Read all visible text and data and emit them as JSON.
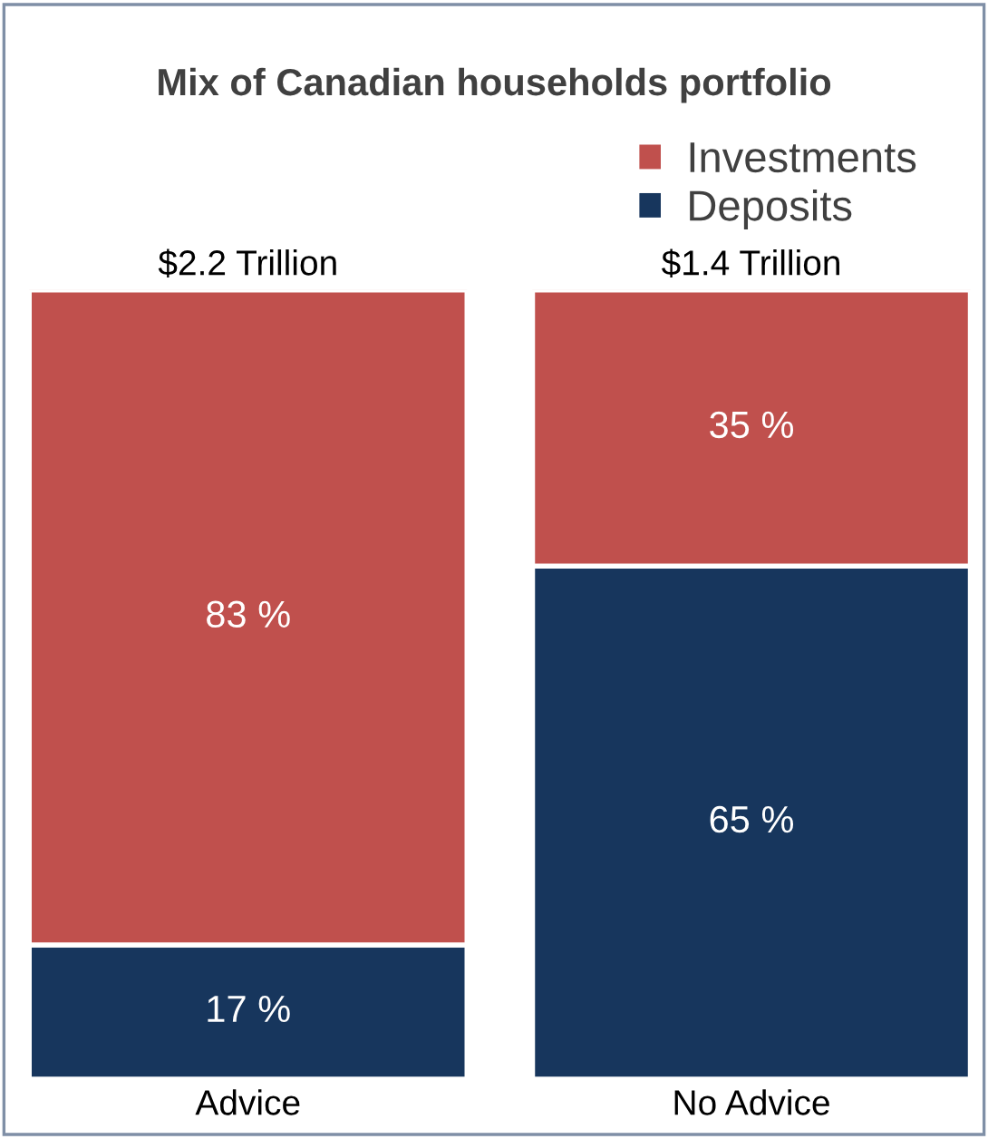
{
  "chart_data": {
    "type": "bar",
    "title": "Mix of Canadian households portfolio",
    "categories": [
      "Advice",
      "No Advice"
    ],
    "stacked": true,
    "legend": "top right",
    "tick_labels": "x",
    "series": [
      {
        "name": "Deposits",
        "color": "#17365d",
        "values": [
          17,
          65
        ],
        "value_labels": [
          "17 %",
          "65 %"
        ]
      },
      {
        "name": "Investments",
        "color": "#c0504d",
        "values": [
          83,
          35
        ],
        "value_labels": [
          "83 %",
          "35 %"
        ]
      }
    ],
    "annotations": [
      {
        "text": "$2.2 Trillion",
        "x": "Advice",
        "y": 100
      },
      {
        "text": "$1.4 Trillion",
        "x": "No Advice",
        "y": 100
      }
    ]
  }
}
